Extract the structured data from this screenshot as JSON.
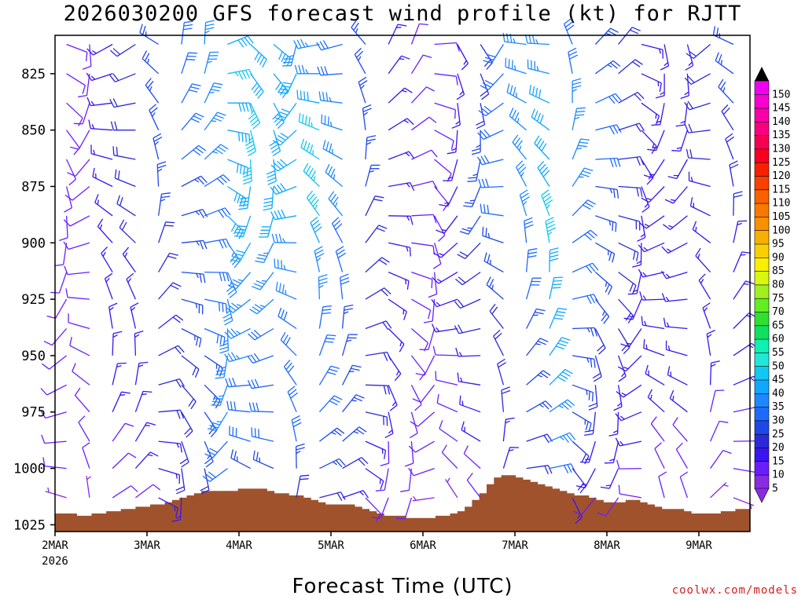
{
  "chart_data": {
    "type": "wind_barbs",
    "title": "2026030200 GFS forecast wind profile (kt) for RJTT",
    "xlabel": "Forecast Time (UTC)",
    "ylabel": "",
    "source": "coolwx.com/models",
    "y_axis": {
      "scale": "pressure",
      "inverted": true,
      "ylim": [
        808,
        1028
      ],
      "ticks": [
        825,
        850,
        875,
        900,
        925,
        950,
        975,
        1000,
        1025
      ]
    },
    "x_axis": {
      "start": "2026-03-02 00Z",
      "end": "2026-03-09 15Z",
      "tick_labels": [
        "2MAR",
        "3MAR",
        "4MAR",
        "5MAR",
        "6MAR",
        "7MAR",
        "8MAR",
        "9MAR"
      ],
      "first_tick_sublabel": "2026"
    },
    "barb_levels": [
      812,
      825,
      838,
      850,
      863,
      875,
      888,
      900,
      913,
      925,
      938,
      950,
      963,
      975,
      988,
      1000,
      1013,
      1025
    ],
    "barb_times_hours": [
      3,
      9,
      15,
      21,
      27,
      33,
      39,
      45,
      51,
      57,
      63,
      69,
      75,
      81,
      87,
      93,
      99,
      105,
      111,
      117,
      123,
      129,
      135,
      141,
      147,
      153,
      159,
      165,
      171,
      177
    ],
    "speed_rows_kt": [
      [
        10,
        10,
        15,
        20,
        25,
        30,
        35,
        40,
        40,
        40,
        35,
        35,
        30,
        25,
        15,
        10,
        10,
        15,
        20,
        30,
        35,
        35,
        30,
        25,
        20,
        15,
        15,
        15,
        20,
        25
      ],
      [
        10,
        10,
        15,
        20,
        25,
        30,
        35,
        45,
        40,
        40,
        40,
        35,
        30,
        25,
        15,
        10,
        10,
        15,
        20,
        30,
        35,
        35,
        30,
        25,
        20,
        15,
        15,
        15,
        20,
        25
      ],
      [
        10,
        10,
        15,
        20,
        25,
        30,
        35,
        40,
        45,
        40,
        40,
        40,
        35,
        25,
        15,
        10,
        10,
        15,
        20,
        30,
        35,
        40,
        35,
        30,
        20,
        15,
        15,
        15,
        20,
        25
      ],
      [
        10,
        10,
        15,
        20,
        25,
        30,
        35,
        40,
        45,
        40,
        40,
        45,
        35,
        25,
        15,
        10,
        10,
        15,
        25,
        30,
        35,
        40,
        35,
        30,
        20,
        15,
        15,
        15,
        20,
        20
      ],
      [
        10,
        10,
        15,
        20,
        25,
        30,
        35,
        40,
        45,
        40,
        40,
        45,
        35,
        25,
        15,
        10,
        10,
        15,
        25,
        30,
        35,
        40,
        35,
        30,
        20,
        15,
        15,
        15,
        20,
        20
      ],
      [
        10,
        10,
        15,
        20,
        25,
        25,
        30,
        40,
        40,
        40,
        40,
        45,
        35,
        25,
        15,
        10,
        10,
        15,
        25,
        30,
        35,
        40,
        35,
        25,
        20,
        15,
        15,
        15,
        15,
        20
      ],
      [
        10,
        10,
        15,
        20,
        25,
        25,
        30,
        40,
        40,
        40,
        40,
        45,
        35,
        20,
        15,
        10,
        10,
        15,
        25,
        30,
        35,
        45,
        30,
        25,
        20,
        15,
        15,
        15,
        15,
        20
      ],
      [
        10,
        10,
        15,
        20,
        20,
        25,
        30,
        35,
        40,
        35,
        35,
        40,
        30,
        20,
        15,
        10,
        10,
        15,
        20,
        25,
        30,
        45,
        30,
        25,
        20,
        15,
        15,
        15,
        15,
        15
      ],
      [
        10,
        10,
        15,
        15,
        20,
        25,
        30,
        35,
        35,
        35,
        35,
        35,
        30,
        20,
        15,
        10,
        10,
        15,
        20,
        25,
        30,
        40,
        30,
        25,
        20,
        15,
        15,
        15,
        15,
        15
      ],
      [
        10,
        10,
        15,
        15,
        20,
        25,
        30,
        35,
        35,
        35,
        35,
        35,
        30,
        20,
        15,
        10,
        10,
        15,
        20,
        25,
        30,
        40,
        30,
        25,
        20,
        15,
        15,
        15,
        15,
        15
      ],
      [
        10,
        10,
        15,
        15,
        20,
        25,
        30,
        35,
        35,
        30,
        30,
        30,
        25,
        20,
        15,
        10,
        10,
        15,
        20,
        20,
        25,
        40,
        25,
        20,
        20,
        15,
        15,
        15,
        15,
        15
      ],
      [
        10,
        10,
        15,
        15,
        20,
        20,
        25,
        35,
        35,
        30,
        30,
        30,
        25,
        20,
        15,
        10,
        10,
        10,
        15,
        20,
        25,
        40,
        25,
        20,
        15,
        15,
        15,
        15,
        15,
        15
      ],
      [
        10,
        10,
        15,
        15,
        20,
        20,
        25,
        35,
        30,
        30,
        30,
        30,
        25,
        20,
        15,
        10,
        10,
        10,
        15,
        20,
        25,
        40,
        25,
        20,
        15,
        15,
        15,
        15,
        15,
        15
      ],
      [
        10,
        10,
        15,
        15,
        20,
        20,
        25,
        35,
        30,
        30,
        30,
        30,
        25,
        20,
        15,
        10,
        10,
        10,
        15,
        20,
        25,
        35,
        25,
        20,
        15,
        15,
        15,
        15,
        10,
        10
      ],
      [
        10,
        10,
        10,
        15,
        15,
        20,
        25,
        30,
        30,
        30,
        30,
        25,
        25,
        15,
        10,
        10,
        10,
        10,
        15,
        15,
        20,
        35,
        20,
        15,
        15,
        15,
        10,
        10,
        10,
        10
      ],
      [
        10,
        10,
        10,
        15,
        15,
        20,
        20,
        30,
        25,
        25,
        25,
        25,
        20,
        15,
        10,
        10,
        10,
        10,
        10,
        15,
        20,
        30,
        20,
        15,
        15,
        10,
        10,
        10,
        10,
        10
      ],
      [
        5,
        5,
        10,
        10,
        15,
        15,
        20,
        25,
        20,
        20,
        20,
        20,
        15,
        10,
        10,
        10,
        5,
        5,
        10,
        10,
        15,
        25,
        15,
        10,
        10,
        10,
        10,
        10,
        5,
        5
      ],
      [
        5,
        5,
        5,
        5,
        10,
        10,
        10,
        10,
        10,
        10,
        10,
        10,
        10,
        5,
        5,
        5,
        5,
        5,
        5,
        5,
        10,
        10,
        10,
        5,
        5,
        5,
        5,
        5,
        5,
        5
      ]
    ],
    "terrain_surface_hpa": [
      1020,
      1020,
      1020,
      1021,
      1021,
      1020,
      1020,
      1019,
      1019,
      1018,
      1018,
      1017,
      1017,
      1016,
      1016,
      1015,
      1014,
      1013,
      1012,
      1011,
      1010,
      1010,
      1010,
      1010,
      1010,
      1009,
      1009,
      1009,
      1009,
      1010,
      1011,
      1011,
      1012,
      1012,
      1013,
      1014,
      1015,
      1016,
      1016,
      1016,
      1016,
      1017,
      1018,
      1019,
      1020,
      1021,
      1021,
      1021,
      1022,
      1022,
      1022,
      1022,
      1021,
      1021,
      1020,
      1019,
      1017,
      1014,
      1011,
      1007,
      1004,
      1003,
      1003,
      1004,
      1005,
      1006,
      1007,
      1008,
      1009,
      1010,
      1011,
      1012,
      1012,
      1013,
      1014,
      1015,
      1015,
      1015,
      1014,
      1014,
      1015,
      1016,
      1017,
      1018,
      1018,
      1018,
      1019,
      1020,
      1020,
      1020,
      1020,
      1019,
      1019,
      1018,
      1018
    ],
    "terrain_color": "#a0522d",
    "colorbar": {
      "levels": [
        5,
        10,
        15,
        20,
        25,
        30,
        35,
        40,
        45,
        50,
        55,
        60,
        65,
        70,
        75,
        80,
        85,
        90,
        95,
        100,
        105,
        110,
        115,
        120,
        125,
        130,
        135,
        140,
        145,
        150
      ],
      "colors": [
        "#8a2be2",
        "#6a1eff",
        "#3a14f0",
        "#2a2ad8",
        "#1e48e8",
        "#1e6aff",
        "#1e88ff",
        "#10a8ff",
        "#10c8f0",
        "#20e8d8",
        "#10f0b0",
        "#10e060",
        "#30e030",
        "#60f020",
        "#a0f020",
        "#d8f810",
        "#f8f000",
        "#f8d000",
        "#f8b000",
        "#f89000",
        "#f87800",
        "#f86000",
        "#f84000",
        "#f82000",
        "#f80020",
        "#f80050",
        "#f80080",
        "#f800a8",
        "#f800d0",
        "#f000f0"
      ],
      "top_arrow_color": "#000000",
      "bottom_arrow_color": "#8a2be2"
    }
  }
}
